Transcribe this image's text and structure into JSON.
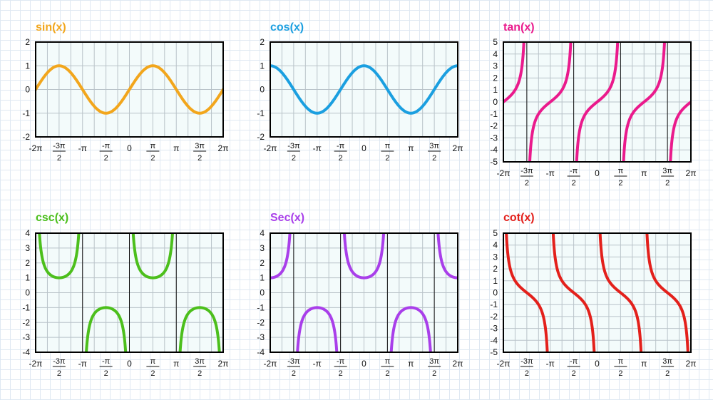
{
  "page": {
    "background": "#ffffff",
    "grid_color": "#dfe8f2",
    "plot_fill": "#f3fbfb"
  },
  "chart_data": [
    {
      "type": "line",
      "id": "sin",
      "title": "sin(x)",
      "color": "#f2a61c",
      "function": "sin",
      "x_domain": "[-2π, 2π]",
      "ylim": [
        -2,
        2
      ],
      "yticks": [
        "2",
        "1",
        "0",
        "-1",
        "-2"
      ],
      "xtick_labels": [
        "-2π",
        "-3π/2",
        "-π",
        "-π/2",
        "0",
        "π/2",
        "π",
        "3π/2",
        "2π"
      ],
      "asymptotes": [],
      "key_points": [
        {
          "x": "-3π/2",
          "y": 1
        },
        {
          "x": "-π/2",
          "y": -1
        },
        {
          "x": "π/2",
          "y": 1
        },
        {
          "x": "3π/2",
          "y": -1
        }
      ]
    },
    {
      "type": "line",
      "id": "cos",
      "title": "cos(x)",
      "color": "#1b9fe0",
      "function": "cos",
      "x_domain": "[-2π, 2π]",
      "ylim": [
        -2,
        2
      ],
      "yticks": [
        "2",
        "1",
        "0",
        "-1",
        "-2"
      ],
      "xtick_labels": [
        "-2π",
        "-3π/2",
        "-π",
        "-π/2",
        "0",
        "π/2",
        "π",
        "3π/2",
        "2π"
      ],
      "asymptotes": [],
      "key_points": [
        {
          "x": "-2π",
          "y": 1
        },
        {
          "x": "-π",
          "y": -1
        },
        {
          "x": "0",
          "y": 1
        },
        {
          "x": "π",
          "y": -1
        },
        {
          "x": "2π",
          "y": 1
        }
      ]
    },
    {
      "type": "line",
      "id": "tan",
      "title": "tan(x)",
      "color": "#ea1a8c",
      "function": "tan",
      "x_domain": "[-2π, 2π]",
      "ylim": [
        -5,
        5
      ],
      "yticks": [
        "5",
        "4",
        "3",
        "2",
        "1",
        "0",
        "-1",
        "-2",
        "-3",
        "-4",
        "-5"
      ],
      "xtick_labels": [
        "-2π",
        "-3π/2",
        "-π",
        "-π/2",
        "0",
        "π/2",
        "π",
        "3π/2",
        "2π"
      ],
      "asymptotes": [
        "-3π/2",
        "-π/2",
        "π/2",
        "3π/2"
      ],
      "key_points": []
    },
    {
      "type": "line",
      "id": "csc",
      "title": "csc(x)",
      "color": "#4cbf1c",
      "function": "csc",
      "x_domain": "[-2π, 2π]",
      "ylim": [
        -4,
        4
      ],
      "yticks": [
        "4",
        "3",
        "2",
        "1",
        "0",
        "-1",
        "-2",
        "-3",
        "-4"
      ],
      "xtick_labels": [
        "-2π",
        "-3π/2",
        "-π",
        "-π/2",
        "0",
        "π/2",
        "π",
        "3π/2",
        "2π"
      ],
      "asymptotes": [
        "-π",
        "0",
        "π"
      ],
      "key_points": [
        {
          "x": "-3π/2",
          "y": 1
        },
        {
          "x": "-π/2",
          "y": -1
        },
        {
          "x": "π/2",
          "y": 1
        },
        {
          "x": "3π/2",
          "y": -1
        }
      ]
    },
    {
      "type": "line",
      "id": "sec",
      "title": "Sec(x)",
      "color": "#a93fea",
      "function": "sec",
      "x_domain": "[-2π, 2π]",
      "ylim": [
        -4,
        4
      ],
      "yticks": [
        "4",
        "3",
        "2",
        "1",
        "0",
        "-1",
        "-2",
        "-3",
        "-4"
      ],
      "xtick_labels": [
        "-2π",
        "-3π/2",
        "-π",
        "-π/2",
        "0",
        "π/2",
        "π",
        "3π/2",
        "2π"
      ],
      "asymptotes": [
        "-3π/2",
        "-π/2",
        "π/2",
        "3π/2"
      ],
      "key_points": [
        {
          "x": "-2π",
          "y": 1
        },
        {
          "x": "-π",
          "y": -1
        },
        {
          "x": "0",
          "y": 1
        },
        {
          "x": "π",
          "y": -1
        },
        {
          "x": "2π",
          "y": 1
        }
      ]
    },
    {
      "type": "line",
      "id": "cot",
      "title": "cot(x)",
      "color": "#e3201b",
      "function": "cot",
      "x_domain": "[-2π, 2π]",
      "ylim": [
        -5,
        5
      ],
      "yticks": [
        "5",
        "4",
        "3",
        "2",
        "1",
        "0",
        "-1",
        "-2",
        "-3",
        "-4",
        "-5"
      ],
      "xtick_labels": [
        "-2π",
        "-3π/2",
        "-π",
        "-π/2",
        "0",
        "π/2",
        "π",
        "3π/2",
        "2π"
      ],
      "asymptotes": [],
      "key_points": []
    }
  ]
}
